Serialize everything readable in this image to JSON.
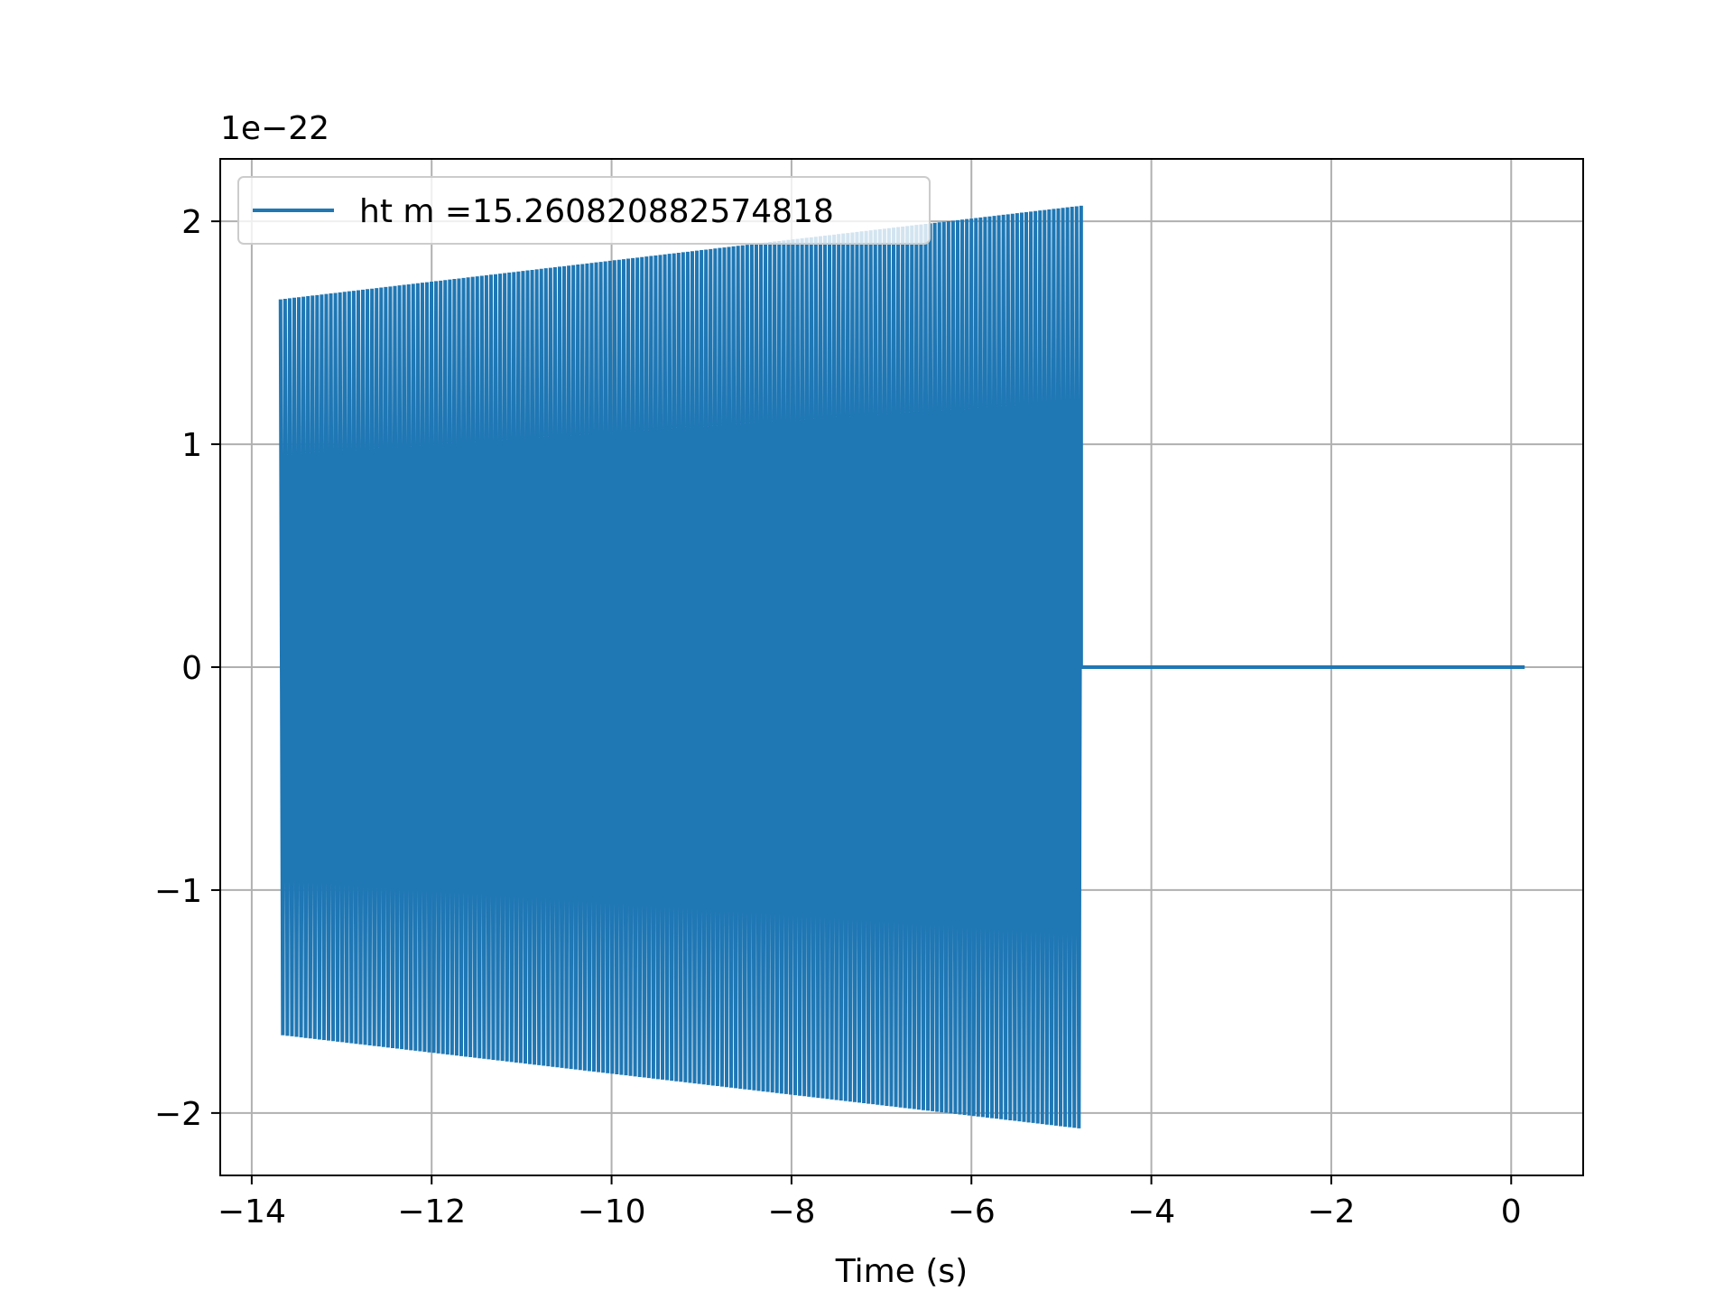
{
  "chart_data": {
    "type": "line",
    "title": "",
    "xlabel": "Time (s)",
    "ylabel": "",
    "y_offset_text": "1e−22",
    "y_scale_factor": 1e-22,
    "xlim": [
      -14.35,
      0.8
    ],
    "ylim": [
      -2.28,
      2.28
    ],
    "grid": true,
    "legend_position": "upper-left",
    "x_ticks": [
      -14,
      -12,
      -10,
      -8,
      -6,
      -4,
      -2,
      0
    ],
    "x_tick_labels": [
      "−14",
      "−12",
      "−10",
      "−8",
      "−6",
      "−4",
      "−2",
      "0"
    ],
    "y_ticks": [
      -2,
      -1,
      0,
      1,
      2
    ],
    "y_tick_labels": [
      "−2",
      "−1",
      "0",
      "1",
      "2"
    ],
    "series": [
      {
        "name": "ht m =15.260820882574818",
        "color": "#1f77b4",
        "signal": {
          "kind": "oscillation",
          "t_start": -13.68,
          "t_end": -4.78,
          "amplitude_start": 1.65,
          "amplitude_end": 2.07,
          "cycles": 175,
          "flat_until": 0.15,
          "flat_value": 0
        }
      }
    ]
  }
}
